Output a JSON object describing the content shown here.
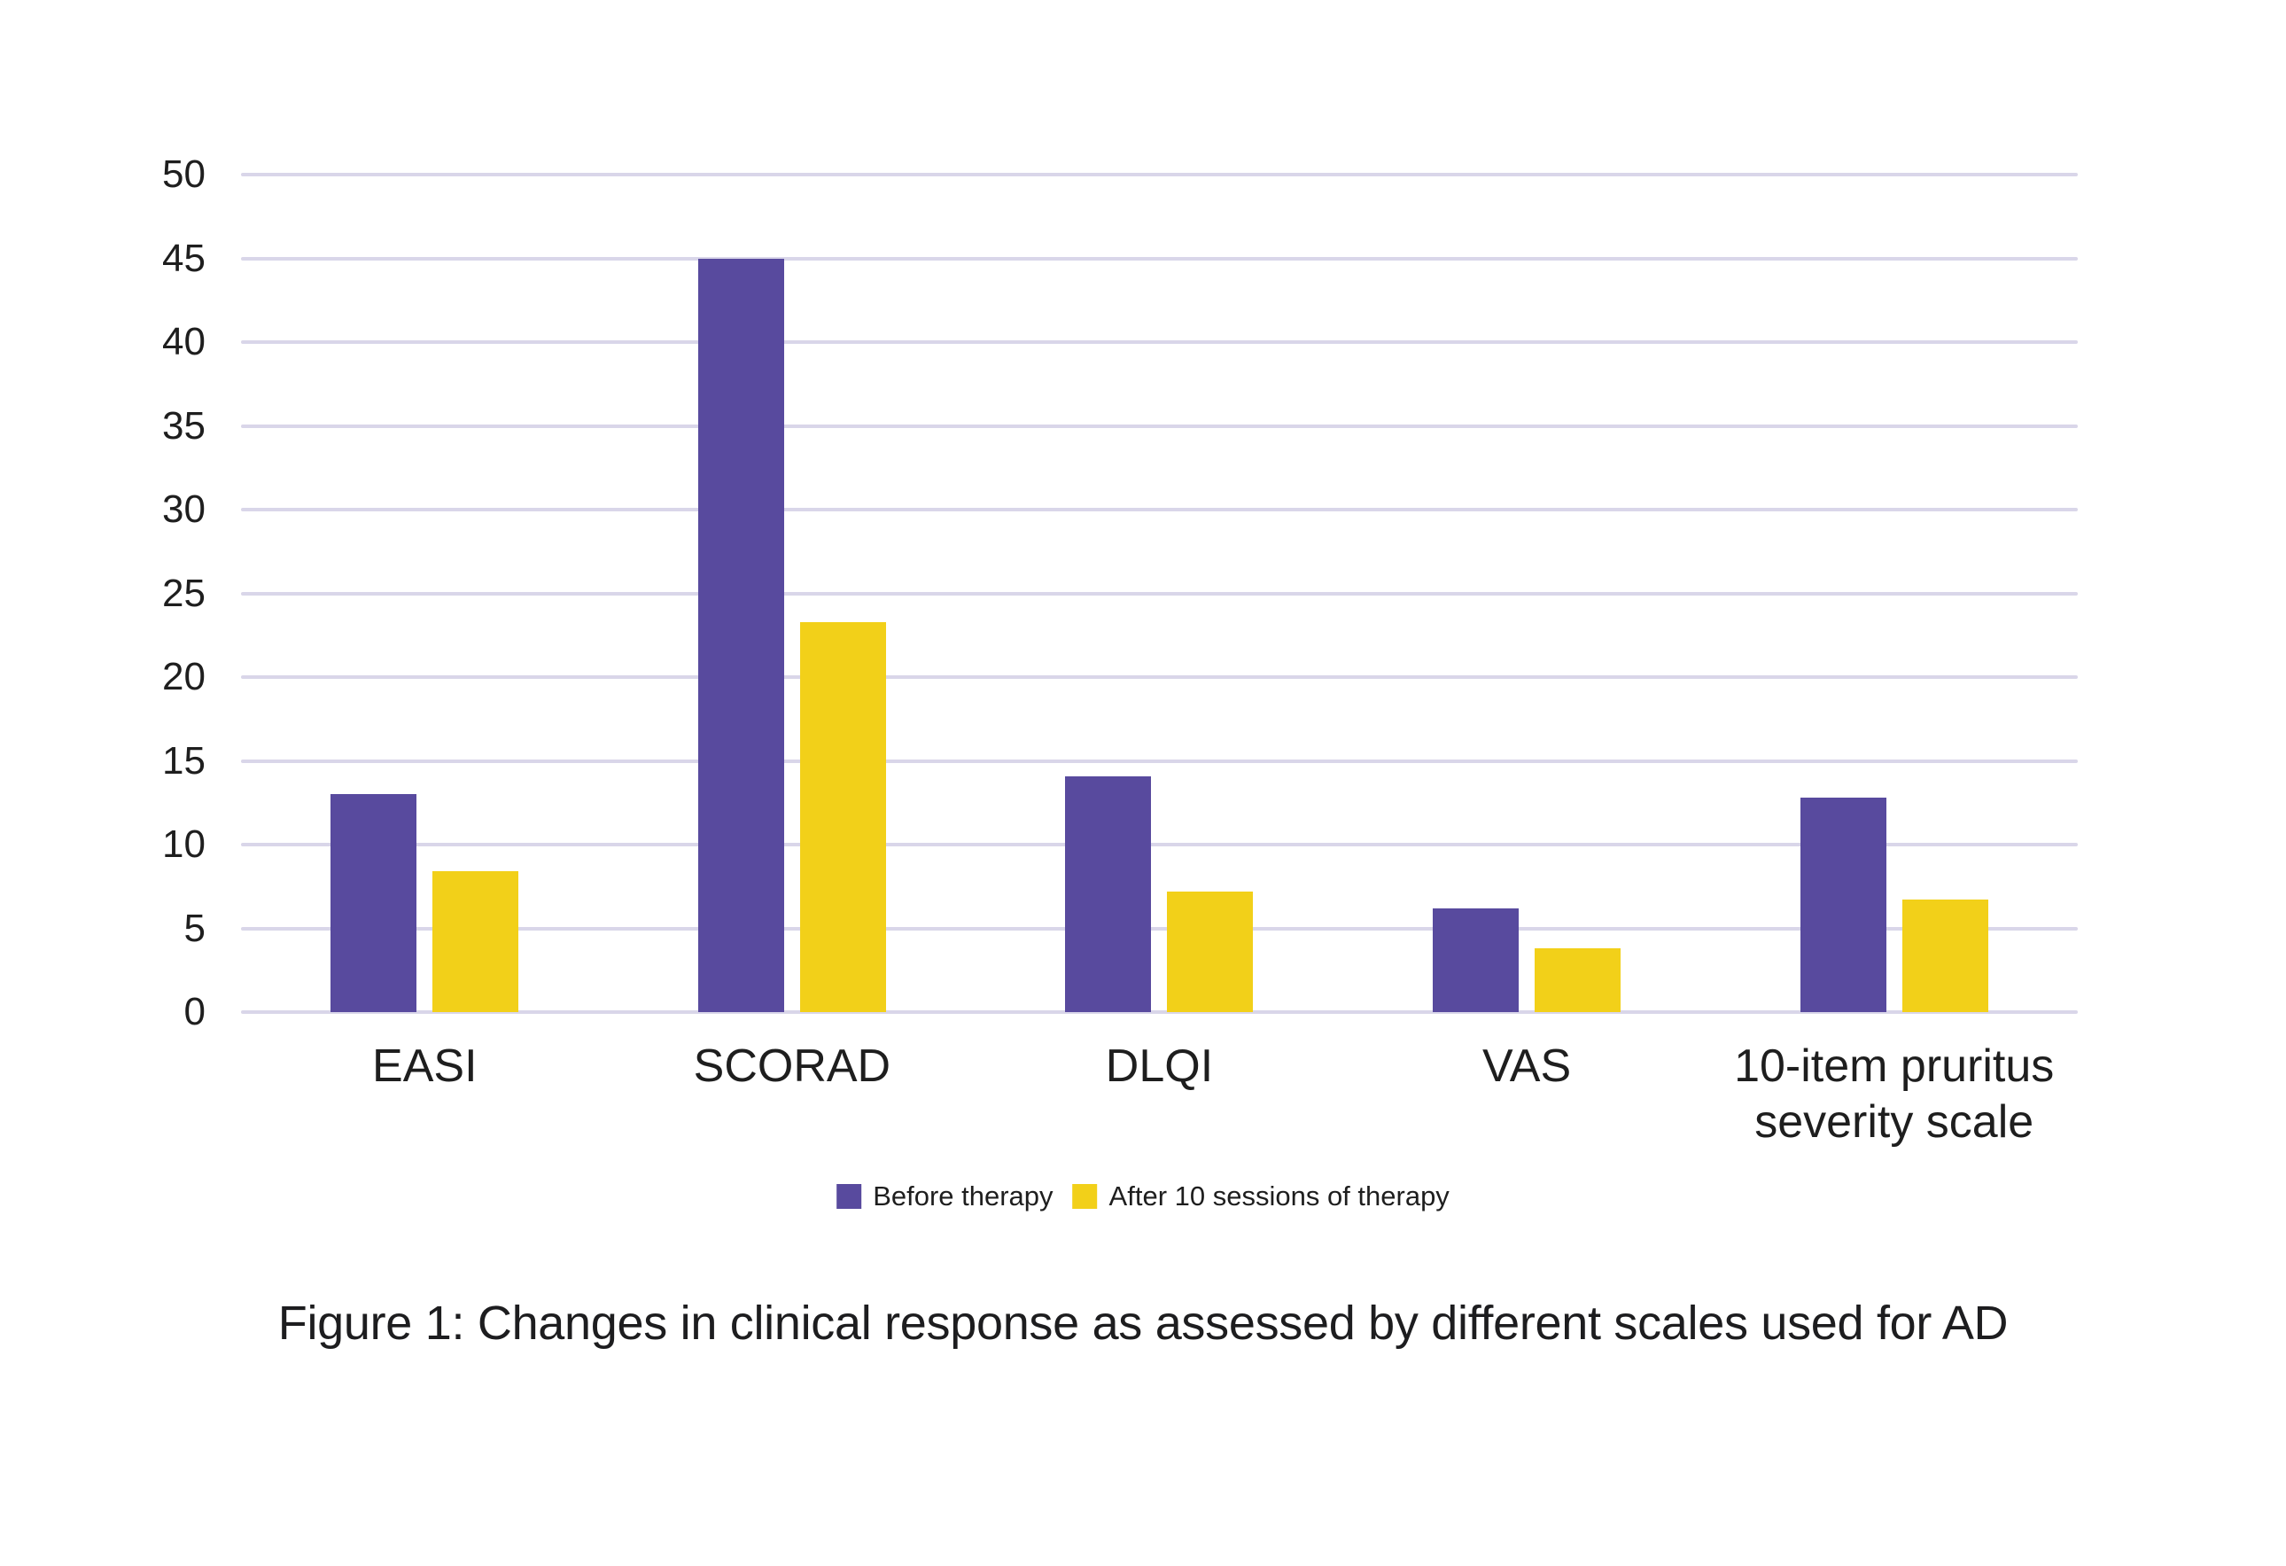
{
  "chart_data": {
    "type": "bar",
    "title": "",
    "categories": [
      "EASI",
      "SCORAD",
      "DLQI",
      "VAS",
      "10-item pruritus severity scale"
    ],
    "series": [
      {
        "name": "Before therapy",
        "color": "#584a9e",
        "values": [
          13,
          45,
          14.1,
          6.2,
          12.8
        ]
      },
      {
        "name": "After 10 sessions of therapy",
        "color": "#f2d019",
        "values": [
          8.4,
          23.3,
          7.2,
          3.8,
          6.7
        ]
      }
    ],
    "xlabel": "",
    "ylabel": "",
    "ylim": [
      0,
      50
    ],
    "ytick_step": 5,
    "grid": true,
    "grid_color": "#d9d6e9",
    "legend_position": "bottom"
  },
  "caption": "Figure 1: Changes in clinical response as assessed by different scales used for AD"
}
